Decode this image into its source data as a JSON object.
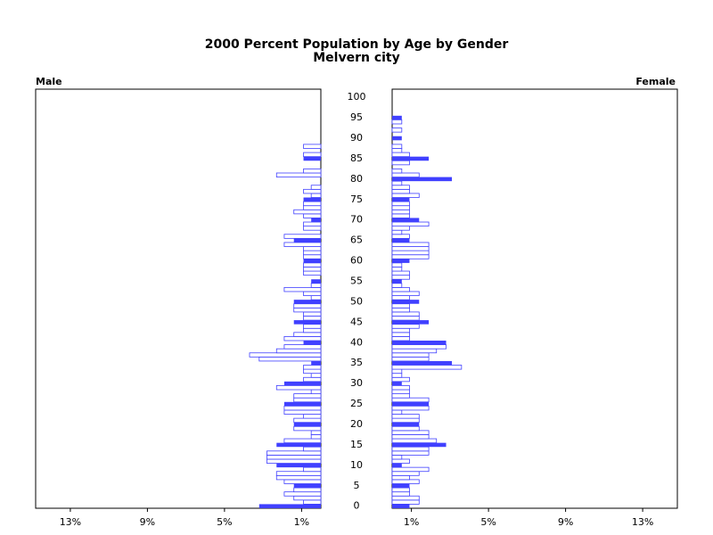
{
  "chart_data": {
    "type": "pyramid",
    "title": "2000 Percent Population by Age by Gender",
    "subtitle": "Melvern city",
    "y": [
      0,
      1,
      2,
      3,
      4,
      5,
      6,
      7,
      8,
      9,
      10,
      11,
      12,
      13,
      14,
      15,
      16,
      17,
      18,
      19,
      20,
      21,
      22,
      23,
      24,
      25,
      26,
      27,
      28,
      29,
      30,
      31,
      32,
      33,
      34,
      35,
      36,
      37,
      38,
      39,
      40,
      41,
      42,
      43,
      44,
      45,
      46,
      47,
      48,
      49,
      50,
      51,
      52,
      53,
      54,
      55,
      56,
      57,
      58,
      59,
      60,
      61,
      62,
      63,
      64,
      65,
      66,
      67,
      68,
      69,
      70,
      71,
      72,
      73,
      74,
      75,
      76,
      77,
      78,
      79,
      80,
      81,
      82,
      83,
      84,
      85,
      86,
      87,
      88,
      89,
      90,
      91,
      92,
      93,
      94,
      95,
      96,
      97,
      98,
      99,
      100
    ],
    "ylim": [
      -0.5,
      102
    ],
    "yticks": [
      0,
      5,
      10,
      15,
      20,
      25,
      30,
      35,
      40,
      45,
      50,
      55,
      60,
      65,
      70,
      75,
      80,
      85,
      90,
      95,
      100
    ],
    "xlim": [
      0,
      14.8
    ],
    "xticks": [
      {
        "value": 1,
        "label": "1%"
      },
      {
        "value": 5,
        "label": "5%"
      },
      {
        "value": 9,
        "label": "9%"
      },
      {
        "value": 13,
        "label": "13%"
      }
    ],
    "series": [
      {
        "name": "Male",
        "color": "#4040ff",
        "values": [
          3.2,
          0.9,
          1.4,
          1.9,
          1.4,
          1.4,
          1.9,
          2.3,
          2.3,
          0.9,
          2.3,
          2.8,
          2.8,
          2.8,
          0.9,
          2.3,
          1.9,
          0.5,
          0.5,
          1.4,
          1.4,
          1.4,
          0.9,
          1.9,
          1.9,
          1.9,
          1.4,
          1.4,
          0.5,
          2.3,
          1.9,
          0.9,
          0.5,
          0.9,
          0.9,
          0.5,
          3.2,
          3.7,
          2.3,
          1.9,
          0.9,
          1.9,
          1.4,
          0.9,
          0.9,
          1.4,
          0.9,
          0.9,
          1.4,
          1.4,
          1.4,
          0.5,
          0.9,
          1.9,
          0.5,
          0.5,
          0,
          0.9,
          0.9,
          0.9,
          0.9,
          0.9,
          0.9,
          0.9,
          1.9,
          1.4,
          1.9,
          0,
          0.9,
          0.9,
          0.5,
          0.9,
          1.4,
          0.9,
          0.9,
          0.9,
          0.5,
          0.9,
          0.5,
          0,
          0,
          2.3,
          0.9,
          0,
          0,
          0.9,
          0.9,
          0,
          0.9,
          0,
          0,
          0,
          0,
          0,
          0,
          0,
          0,
          0,
          0,
          0,
          0
        ]
      },
      {
        "name": "Female",
        "color": "#4040ff",
        "values": [
          0.9,
          1.4,
          1.4,
          0.9,
          0.9,
          0.9,
          1.4,
          0.9,
          1.4,
          1.9,
          0.5,
          0.9,
          0.5,
          1.9,
          1.9,
          2.8,
          2.3,
          1.9,
          1.9,
          1.4,
          1.4,
          1.4,
          1.4,
          0.5,
          1.9,
          1.9,
          1.9,
          0.9,
          0.9,
          0.9,
          0.5,
          0.9,
          0.5,
          0.5,
          3.6,
          3.1,
          1.9,
          1.9,
          2.3,
          2.8,
          2.8,
          0.9,
          0.9,
          0.9,
          1.4,
          1.9,
          1.4,
          1.4,
          0.9,
          0.9,
          1.4,
          0.9,
          1.4,
          0.9,
          0.5,
          0.5,
          0.9,
          0.9,
          0.5,
          0.5,
          0.9,
          1.9,
          1.9,
          1.9,
          1.9,
          0.9,
          0.9,
          0.5,
          0.9,
          1.9,
          1.4,
          0.9,
          0.9,
          0.9,
          0.9,
          0.9,
          1.4,
          0.9,
          0.9,
          0.5,
          3.1,
          1.4,
          0.5,
          0,
          0.9,
          1.9,
          0.9,
          0.5,
          0.5,
          0,
          0.5,
          0,
          0.5,
          0,
          0.5,
          0.5,
          0,
          0,
          0,
          0,
          0
        ]
      }
    ]
  }
}
